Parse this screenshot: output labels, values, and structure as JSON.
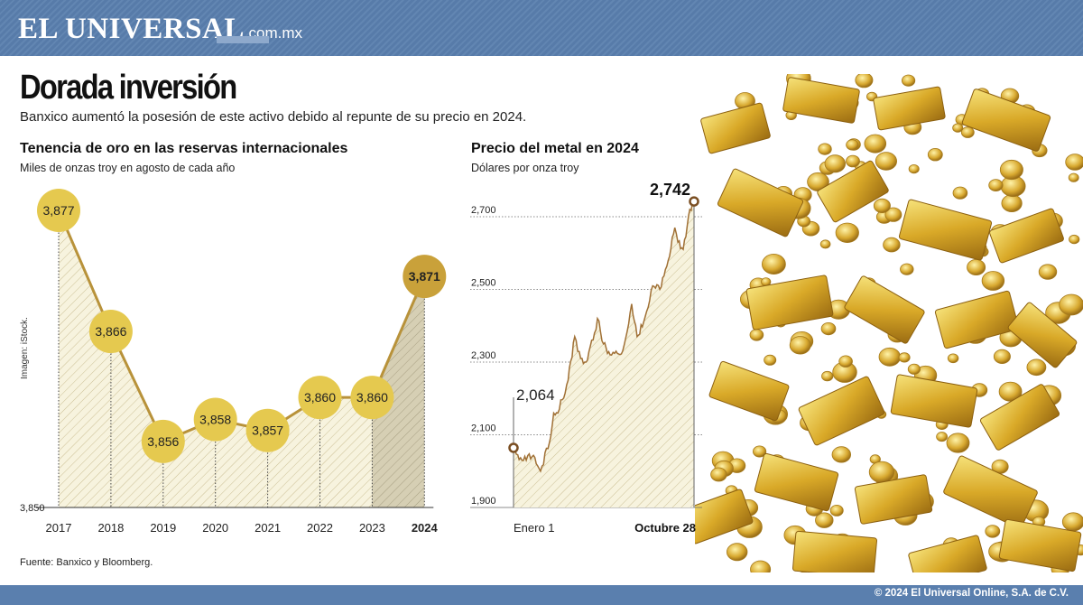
{
  "header": {
    "logo": "EL UNIVERSAL",
    "logo_suffix": ".com.mx"
  },
  "title": "Dorada inversión",
  "subtitle": "Banxico aumentó la posesión de este activo debido al repunte de su precio en 2024.",
  "left_chart": {
    "title": "Tenencia de oro en las reservas internacionales",
    "subtitle": "Miles de onzas troy en agosto de cada año",
    "baseline_label": "3,850"
  },
  "right_chart": {
    "title": "Precio del metal en 2024",
    "subtitle": "Dólares por onza troy",
    "start_label": "2,064",
    "end_label": "2,742",
    "x_start_label": "Enero 1",
    "x_end_label": "Octubre 28",
    "y_ticks": [
      "2,700",
      "2,500",
      "2,300",
      "2,100",
      "1,900"
    ]
  },
  "source": "Fuente: Banxico y Bloomberg.",
  "credit": "Imagen: iStock.",
  "footer": "© 2024 El Universal Online, S.A. de C.V.",
  "colors": {
    "gold": "#e5c94f",
    "gold_dark": "#c9a13a",
    "line": "#b8923a",
    "header": "#5a7fae",
    "price_line": "#a07035"
  },
  "chart_data": [
    {
      "type": "line",
      "title": "Tenencia de oro en las reservas internacionales",
      "ylabel": "Miles de onzas troy en agosto de cada año",
      "categories": [
        "2017",
        "2018",
        "2019",
        "2020",
        "2021",
        "2022",
        "2023",
        "2024"
      ],
      "values": [
        3877,
        3866,
        3856,
        3858,
        3857,
        3860,
        3860,
        3871
      ],
      "value_labels": [
        "3,877",
        "3,866",
        "3,856",
        "3,858",
        "3,857",
        "3,860",
        "3,860",
        "3,871"
      ],
      "ylim": [
        3850,
        3880
      ],
      "highlight": "2024"
    },
    {
      "type": "line",
      "title": "Precio del metal en 2024",
      "ylabel": "Dólares por onza troy",
      "x": [
        "2024-01-01",
        "2024-01-15",
        "2024-02-01",
        "2024-02-15",
        "2024-03-01",
        "2024-03-08",
        "2024-03-15",
        "2024-04-01",
        "2024-04-12",
        "2024-04-22",
        "2024-05-01",
        "2024-05-15",
        "2024-05-20",
        "2024-05-30",
        "2024-06-10",
        "2024-06-20",
        "2024-07-01",
        "2024-07-16",
        "2024-07-25",
        "2024-08-05",
        "2024-08-20",
        "2024-09-01",
        "2024-09-15",
        "2024-09-26",
        "2024-10-01",
        "2024-10-10",
        "2024-10-21",
        "2024-10-28"
      ],
      "values": [
        2064,
        2030,
        2040,
        2000,
        2080,
        2160,
        2160,
        2250,
        2370,
        2310,
        2300,
        2380,
        2420,
        2350,
        2320,
        2330,
        2330,
        2460,
        2370,
        2410,
        2510,
        2500,
        2580,
        2670,
        2630,
        2610,
        2720,
        2742
      ],
      "ylim": [
        1900,
        2800
      ],
      "y_ticks": [
        1900,
        2100,
        2300,
        2500,
        2700
      ]
    }
  ]
}
